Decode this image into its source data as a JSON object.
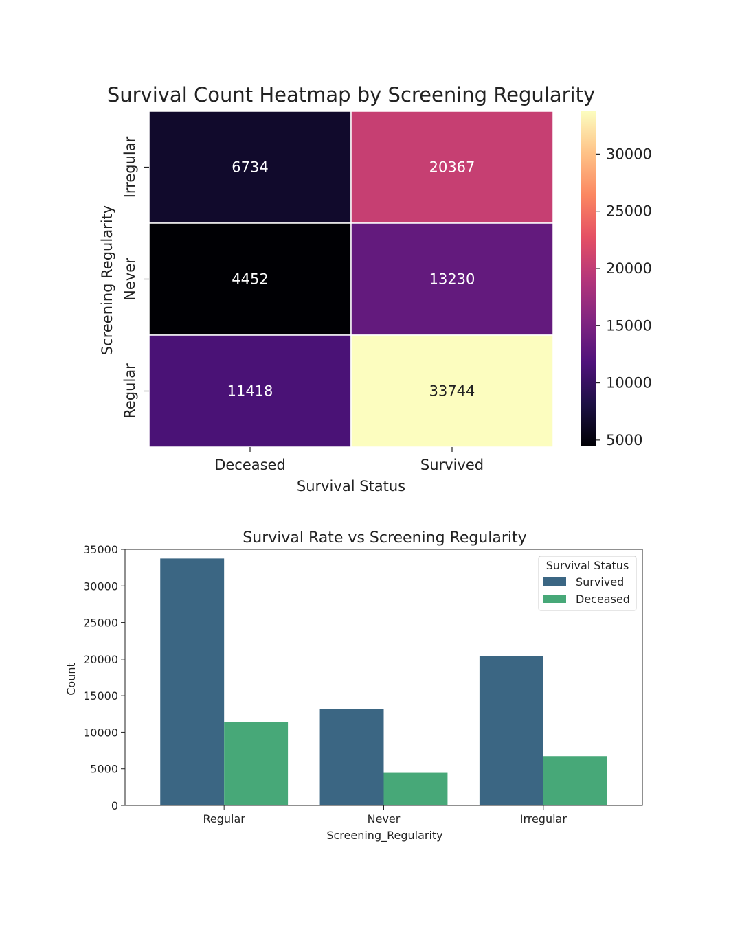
{
  "chart_data": [
    {
      "type": "heatmap",
      "title": "Survival Count Heatmap by Screening Regularity",
      "xlabel": "Survival Status",
      "ylabel": "Screening Regularity",
      "x_categories": [
        "Deceased",
        "Survived"
      ],
      "y_categories": [
        "Irregular",
        "Never",
        "Regular"
      ],
      "values": [
        [
          6734,
          20367
        ],
        [
          4452,
          13230
        ],
        [
          11418,
          33744
        ]
      ],
      "colormap": "magma",
      "colorbar": {
        "min": 4452,
        "max": 33744,
        "ticks": [
          5000,
          10000,
          15000,
          20000,
          25000,
          30000
        ]
      }
    },
    {
      "type": "bar",
      "title": "Survival Rate vs Screening Regularity",
      "xlabel": "Screening_Regularity",
      "ylabel": "Count",
      "categories": [
        "Regular",
        "Never",
        "Irregular"
      ],
      "series": [
        {
          "name": "Survived",
          "values": [
            33744,
            13230,
            20367
          ],
          "color": "#3b6683"
        },
        {
          "name": "Deceased",
          "values": [
            11418,
            4452,
            6734
          ],
          "color": "#47a878"
        }
      ],
      "ylim": [
        0,
        35000
      ],
      "yticks": [
        0,
        5000,
        10000,
        15000,
        20000,
        25000,
        30000,
        35000
      ],
      "legend": {
        "title": "Survival Status",
        "placement": "top-right"
      },
      "grid": false
    }
  ]
}
